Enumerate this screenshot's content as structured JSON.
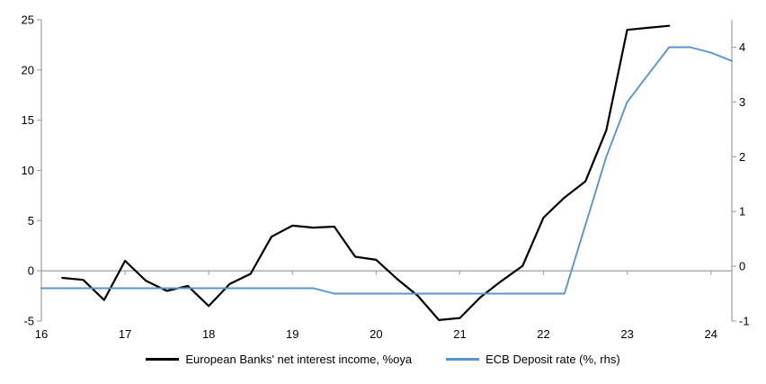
{
  "chart_data": {
    "type": "line",
    "legend_position": "bottom",
    "grid": "zero-line-only",
    "x_axis": {
      "min": 16,
      "max": 24.25,
      "tick_values": [
        16,
        17,
        18,
        19,
        20,
        21,
        22,
        23,
        24
      ],
      "tick_labels": [
        "16",
        "17",
        "18",
        "19",
        "20",
        "21",
        "22",
        "23",
        "24"
      ]
    },
    "left_axis": {
      "min": -5,
      "max": 25,
      "tick_values": [
        25,
        20,
        15,
        10,
        5,
        0,
        -5
      ],
      "tick_labels": [
        "25",
        "20",
        "15",
        "10",
        "5",
        "0",
        "-5"
      ]
    },
    "right_axis": {
      "min": -1,
      "max": 4.5,
      "tick_values": [
        4,
        3,
        2,
        1,
        0,
        -1
      ],
      "tick_labels": [
        "4",
        "3",
        "2",
        "1",
        "0",
        "-1"
      ]
    },
    "series": [
      {
        "name": "European Banks' net interest income, %oya",
        "axis": "left",
        "color": "#000000",
        "line_width": 2.2,
        "x": [
          16.25,
          16.5,
          16.75,
          17.0,
          17.25,
          17.5,
          17.75,
          18.0,
          18.25,
          18.5,
          18.75,
          19.0,
          19.25,
          19.5,
          19.75,
          20.0,
          20.25,
          20.5,
          20.75,
          21.0,
          21.25,
          21.5,
          21.75,
          22.0,
          22.25,
          22.5,
          22.75,
          23.0,
          23.25,
          23.5
        ],
        "values": [
          -0.7,
          -0.9,
          -2.9,
          1.0,
          -1.0,
          -2.0,
          -1.5,
          -3.5,
          -1.3,
          -0.3,
          3.4,
          4.5,
          4.3,
          4.4,
          1.4,
          1.1,
          -0.8,
          -2.5,
          -4.9,
          -4.7,
          -2.6,
          -1.0,
          0.5,
          5.3,
          7.3,
          8.9,
          14.0,
          24.0,
          24.2,
          24.4
        ]
      },
      {
        "name": "ECB Deposit rate (%, rhs)",
        "axis": "right",
        "color": "#5B93CC",
        "line_width": 1.9,
        "x": [
          16.0,
          16.25,
          16.5,
          16.75,
          17.0,
          17.25,
          17.5,
          17.75,
          18.0,
          18.25,
          18.5,
          18.75,
          19.0,
          19.25,
          19.5,
          19.75,
          20.0,
          20.25,
          20.5,
          20.75,
          21.0,
          21.25,
          21.5,
          21.75,
          22.0,
          22.25,
          22.5,
          22.75,
          23.0,
          23.25,
          23.5,
          23.75,
          24.0,
          24.25
        ],
        "values": [
          -0.4,
          -0.4,
          -0.4,
          -0.4,
          -0.4,
          -0.4,
          -0.4,
          -0.4,
          -0.4,
          -0.4,
          -0.4,
          -0.4,
          -0.4,
          -0.4,
          -0.5,
          -0.5,
          -0.5,
          -0.5,
          -0.5,
          -0.5,
          -0.5,
          -0.5,
          -0.5,
          -0.5,
          -0.5,
          -0.5,
          0.75,
          2.0,
          3.0,
          3.5,
          4.0,
          4.0,
          3.9,
          3.75
        ]
      }
    ],
    "colors": {
      "axis": "#A6A6A6",
      "text": "#000000",
      "background": "#FFFFFF"
    }
  }
}
